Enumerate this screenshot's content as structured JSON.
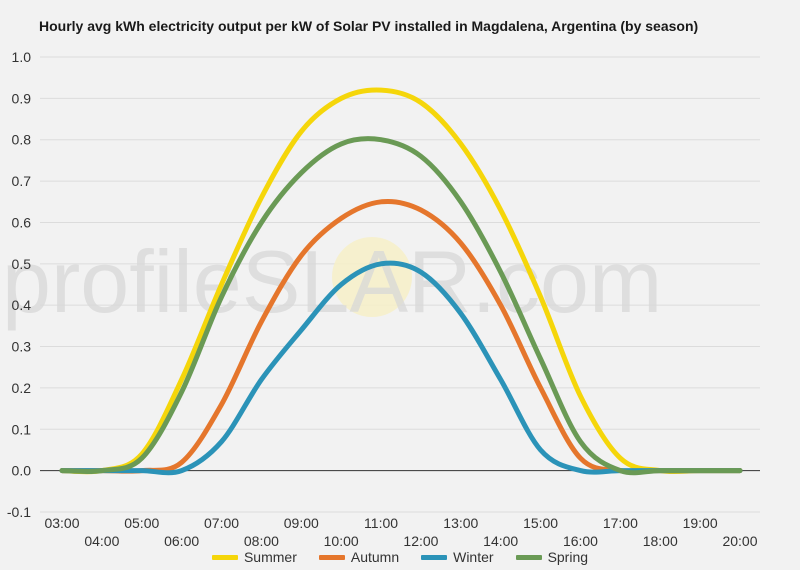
{
  "chart_data": {
    "type": "line",
    "title": "Hourly avg kWh electricity output per kW of Solar PV installed in Magdalena, Argentina (by season)",
    "xlabel": "",
    "ylabel": "",
    "x": [
      "03:00",
      "04:00",
      "05:00",
      "06:00",
      "07:00",
      "08:00",
      "09:00",
      "10:00",
      "11:00",
      "12:00",
      "13:00",
      "14:00",
      "15:00",
      "16:00",
      "17:00",
      "18:00",
      "19:00",
      "20:00"
    ],
    "ylim": [
      -0.1,
      1.0
    ],
    "yticks": [
      "-0.1",
      "0.0",
      "0.1",
      "0.2",
      "0.3",
      "0.4",
      "0.5",
      "0.6",
      "0.7",
      "0.8",
      "0.9",
      "1.0"
    ],
    "grid": true,
    "legend_position": "bottom",
    "series": [
      {
        "name": "Summer",
        "color": "#f5d60a",
        "values": [
          0.0,
          0.0,
          0.04,
          0.22,
          0.45,
          0.66,
          0.82,
          0.9,
          0.92,
          0.89,
          0.79,
          0.63,
          0.42,
          0.18,
          0.03,
          0.0,
          0.0,
          0.0
        ]
      },
      {
        "name": "Autumn",
        "color": "#e5762c",
        "values": [
          0.0,
          0.0,
          0.0,
          0.02,
          0.16,
          0.36,
          0.52,
          0.61,
          0.65,
          0.63,
          0.55,
          0.4,
          0.2,
          0.03,
          0.0,
          0.0,
          0.0,
          0.0
        ]
      },
      {
        "name": "Winter",
        "color": "#2b93b8",
        "values": [
          0.0,
          0.0,
          0.0,
          0.0,
          0.07,
          0.22,
          0.34,
          0.45,
          0.5,
          0.48,
          0.38,
          0.22,
          0.05,
          0.0,
          0.0,
          0.0,
          0.0,
          0.0
        ]
      },
      {
        "name": "Spring",
        "color": "#6a9a55",
        "values": [
          0.0,
          0.0,
          0.03,
          0.19,
          0.42,
          0.6,
          0.72,
          0.79,
          0.8,
          0.76,
          0.65,
          0.48,
          0.27,
          0.07,
          0.0,
          0.0,
          0.0,
          0.0
        ]
      }
    ]
  },
  "watermark": {
    "text_left": "profile",
    "text_s": "S",
    "text_right": "LAR.com"
  }
}
